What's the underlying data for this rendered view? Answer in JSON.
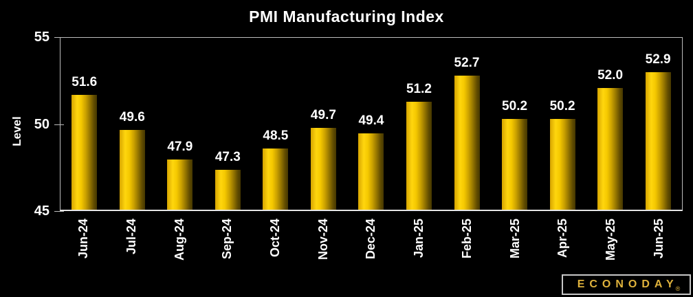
{
  "chart_data": {
    "type": "bar",
    "title": "PMI Manufacturing Index",
    "ylabel": "Level",
    "xlabel": "",
    "categories": [
      "Jun-24",
      "Jul-24",
      "Aug-24",
      "Sep-24",
      "Oct-24",
      "Nov-24",
      "Dec-24",
      "Jan-25",
      "Feb-25",
      "Mar-25",
      "Apr-25",
      "May-25",
      "Jun-25"
    ],
    "values": [
      51.6,
      49.6,
      47.9,
      47.3,
      48.5,
      49.7,
      49.4,
      51.2,
      52.7,
      50.2,
      50.2,
      52.0,
      52.9
    ],
    "value_labels": [
      "51.6",
      "49.6",
      "47.9",
      "47.3",
      "48.5",
      "49.7",
      "49.4",
      "51.2",
      "52.7",
      "50.2",
      "50.2",
      "52.0",
      "52.9"
    ],
    "ylim": [
      45,
      55
    ],
    "yticks": [
      "55",
      "50",
      "45"
    ],
    "grid": false,
    "legend_position": "none",
    "value_labels_shown": true
  },
  "colors": {
    "background": "#000000",
    "bar_bright": "#ffd60e",
    "bar_dark": "#463700",
    "axis_line": "#bdbdbd",
    "text": "#ffffff",
    "logo_gold": "#dfb23c"
  },
  "logo": {
    "text": "ECONODAY",
    "registered": "®"
  }
}
